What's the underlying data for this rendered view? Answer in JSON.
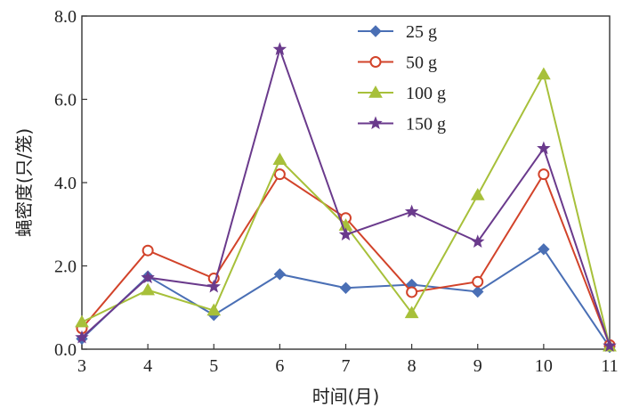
{
  "chart_data": {
    "type": "line",
    "title": "",
    "xlabel": "时间(月)",
    "ylabel": "蝇密度(只/笼)",
    "x": [
      3,
      4,
      5,
      6,
      7,
      8,
      9,
      10,
      11
    ],
    "xticks": [
      "3",
      "4",
      "5",
      "6",
      "7",
      "8",
      "9",
      "10",
      "11"
    ],
    "xlim": [
      3,
      11
    ],
    "ylim": [
      0,
      8
    ],
    "yticks": [
      "0.0",
      "2.0",
      "4.0",
      "6.0",
      "8.0"
    ],
    "yticks_values": [
      0,
      2,
      4,
      6,
      8
    ],
    "grid": false,
    "legend_position": "top-right",
    "series": [
      {
        "name": "25 g",
        "color": "#4a6fb5",
        "marker": "diamond-filled",
        "values": [
          0.25,
          1.75,
          0.82,
          1.8,
          1.47,
          1.55,
          1.38,
          2.4,
          0.05
        ]
      },
      {
        "name": "50 g",
        "color": "#d2432a",
        "marker": "circle-open",
        "values": [
          0.5,
          2.37,
          1.7,
          4.2,
          3.15,
          1.37,
          1.62,
          4.2,
          0.1
        ]
      },
      {
        "name": "100 g",
        "color": "#a7c03a",
        "marker": "triangle-filled",
        "values": [
          0.65,
          1.42,
          0.93,
          4.55,
          2.97,
          0.87,
          3.7,
          6.6,
          0.07
        ]
      },
      {
        "name": "150 g",
        "color": "#6a3a8c",
        "marker": "star-filled",
        "values": [
          0.28,
          1.72,
          1.5,
          7.2,
          2.75,
          3.3,
          2.58,
          4.82,
          0.08
        ]
      }
    ]
  }
}
